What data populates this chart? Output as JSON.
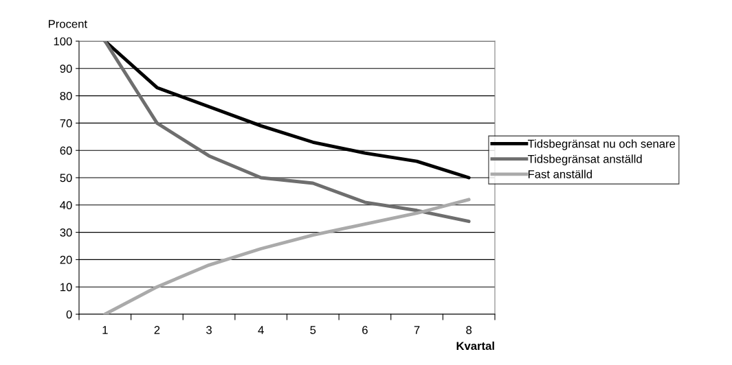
{
  "chart_data": {
    "type": "line",
    "ylabel": "Procent",
    "xlabel": "Kvartal",
    "categories": [
      "1",
      "2",
      "3",
      "4",
      "5",
      "6",
      "7",
      "8"
    ],
    "series": [
      {
        "name": "Tidsbegränsat nu och senare",
        "color": "#000000",
        "values": [
          100,
          83,
          76,
          69,
          63,
          59,
          56,
          50
        ]
      },
      {
        "name": "Tidsbegränsat anställd",
        "color": "#6e6e6e",
        "values": [
          100,
          70,
          58,
          50,
          48,
          41,
          38,
          34
        ]
      },
      {
        "name": "Fast anställd",
        "color": "#aaaaaa",
        "values": [
          0,
          10,
          18,
          24,
          29,
          33,
          37,
          42
        ]
      }
    ],
    "ylim": [
      0,
      100
    ],
    "yticks": [
      0,
      10,
      20,
      30,
      40,
      50,
      60,
      70,
      80,
      90,
      100
    ],
    "grid": "y",
    "legend": "right",
    "marker": "none",
    "line_style": "solid"
  }
}
